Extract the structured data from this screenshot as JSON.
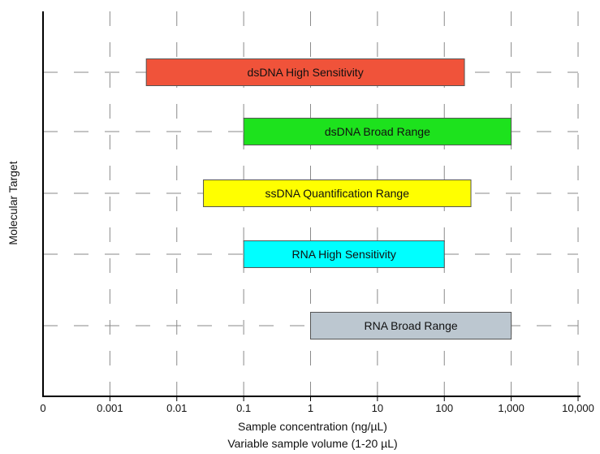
{
  "chart_data": {
    "type": "bar",
    "orientation": "horizontal",
    "subtype": "floating range bars",
    "title": "",
    "xlabel": "Sample concentration (ng/µL)",
    "xlabel_sub": "Variable sample volume (1-20 µL)",
    "ylabel": "Molecular Target",
    "x_scale": "log",
    "x_ticks": [
      "0",
      "0.001",
      "0.01",
      "0.1",
      "1",
      "10",
      "100",
      "1,000",
      "10,000"
    ],
    "x_tick_values": [
      0.0001,
      0.001,
      0.01,
      0.1,
      1,
      10,
      100,
      1000,
      10000
    ],
    "xlim": [
      0.0001,
      10000
    ],
    "grid": true,
    "legend": "none",
    "series": [
      {
        "name": "dsDNA High Sensitivity",
        "start": 0.0035,
        "end": 200,
        "color": "#f0533a"
      },
      {
        "name": "dsDNA Broad Range",
        "start": 0.1,
        "end": 1000,
        "color": "#1de21d"
      },
      {
        "name": "ssDNA Quantification Range",
        "start": 0.025,
        "end": 250,
        "color": "#ffff00"
      },
      {
        "name": "RNA High Sensitivity",
        "start": 0.1,
        "end": 100,
        "color": "#00ffff"
      },
      {
        "name": "RNA Broad Range",
        "start": 1,
        "end": 1000,
        "color": "#bcc7d0"
      }
    ]
  }
}
